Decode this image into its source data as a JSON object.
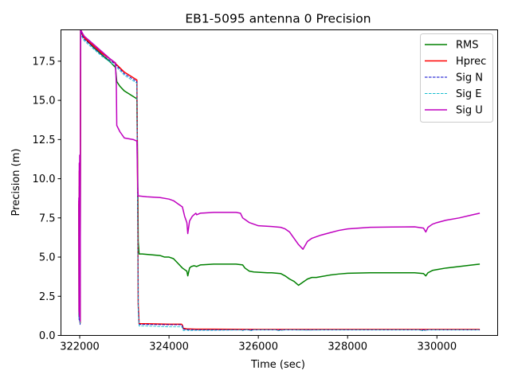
{
  "chart_data": {
    "type": "line",
    "title": "EB1-5095 antenna 0 Precision",
    "xlabel": "Time (sec)",
    "ylabel": "Precision (m)",
    "xlim": [
      321580,
      331360
    ],
    "ylim": [
      0.0,
      19.5
    ],
    "xticks": [
      322000,
      324000,
      326000,
      328000,
      330000
    ],
    "xtick_labels": [
      "322000",
      "324000",
      "326000",
      "328000",
      "330000"
    ],
    "yticks": [
      0.0,
      2.5,
      5.0,
      7.5,
      10.0,
      12.5,
      15.0,
      17.5
    ],
    "ytick_labels": [
      "0.0",
      "2.5",
      "5.0",
      "7.5",
      "10.0",
      "12.5",
      "15.0",
      "17.5"
    ],
    "grid": false,
    "legend_position": "top-right",
    "series": [
      {
        "name": "RMS",
        "color": "#008000",
        "style": "solid",
        "x": [
          321980,
          321985,
          321990,
          321995,
          322000,
          322005,
          322010,
          322020,
          322030,
          322040,
          322060,
          322100,
          322300,
          322500,
          322700,
          322800,
          322830,
          322900,
          323000,
          323280,
          323300,
          323310,
          323330,
          323400,
          323600,
          323800,
          323900,
          324000,
          324100,
          324200,
          324300,
          324400,
          324420,
          324460,
          324500,
          324560,
          324620,
          324700,
          325000,
          325500,
          325650,
          325700,
          325800,
          325900,
          326200,
          326300,
          326500,
          326600,
          326700,
          326800,
          326900,
          327000,
          327100,
          327200,
          327300,
          327400,
          327600,
          327800,
          328000,
          328500,
          329000,
          329500,
          329700,
          329750,
          329800,
          329900,
          330000,
          330200,
          330500,
          330800,
          330960
        ],
        "y": [
          8.4,
          1.2,
          9.5,
          1.0,
          10.8,
          1.0,
          0.8,
          19.5,
          19.4,
          19.3,
          19.2,
          19.0,
          18.4,
          17.9,
          17.4,
          17.1,
          16.2,
          15.9,
          15.6,
          15.1,
          10.0,
          6.0,
          5.2,
          5.2,
          5.15,
          5.1,
          5.0,
          5.0,
          4.9,
          4.6,
          4.3,
          4.1,
          3.8,
          4.3,
          4.4,
          4.45,
          4.4,
          4.5,
          4.55,
          4.55,
          4.5,
          4.3,
          4.1,
          4.05,
          4.0,
          4.0,
          3.95,
          3.8,
          3.6,
          3.45,
          3.2,
          3.4,
          3.6,
          3.7,
          3.7,
          3.75,
          3.85,
          3.92,
          3.97,
          4.0,
          4.0,
          4.0,
          3.95,
          3.8,
          4.0,
          4.15,
          4.2,
          4.3,
          4.4,
          4.5,
          4.55
        ]
      },
      {
        "name": "Hprec",
        "color": "#ff0000",
        "style": "solid",
        "x": [
          321980,
          321985,
          321990,
          321995,
          322000,
          322005,
          322010,
          322020,
          322030,
          322040,
          322060,
          322100,
          322300,
          322500,
          322700,
          322800,
          323000,
          323280,
          323300,
          323310,
          323330,
          323500,
          324000,
          324280,
          324300,
          324320,
          324400,
          324600,
          325000,
          326000,
          328000,
          330000,
          330960
        ],
        "y": [
          8.6,
          1.3,
          10.5,
          1.1,
          11.0,
          1.0,
          0.8,
          19.5,
          19.45,
          19.3,
          19.2,
          19.0,
          18.5,
          18.0,
          17.6,
          17.35,
          16.8,
          16.3,
          8.0,
          2.0,
          0.75,
          0.75,
          0.72,
          0.72,
          0.65,
          0.45,
          0.42,
          0.4,
          0.4,
          0.38,
          0.38,
          0.38,
          0.38
        ]
      },
      {
        "name": "Sig N",
        "color": "#0000cc",
        "style": "dashed",
        "x": [
          321980,
          321985,
          321990,
          321995,
          322000,
          322005,
          322010,
          322020,
          322030,
          322040,
          322060,
          322100,
          322300,
          322500,
          322700,
          322800,
          323000,
          323280,
          323300,
          323310,
          323330,
          323500,
          324000,
          324280,
          324300,
          324320,
          324400,
          324600,
          325000,
          326000,
          328000,
          330000,
          330960
        ],
        "y": [
          8.0,
          1.0,
          10.0,
          0.9,
          10.5,
          0.9,
          0.7,
          19.4,
          19.35,
          19.2,
          19.1,
          18.9,
          18.4,
          17.9,
          17.5,
          17.3,
          16.7,
          16.2,
          7.5,
          1.8,
          0.7,
          0.7,
          0.68,
          0.68,
          0.6,
          0.4,
          0.38,
          0.36,
          0.36,
          0.35,
          0.35,
          0.35,
          0.35
        ]
      },
      {
        "name": "Sig E",
        "color": "#17becf",
        "style": "dashed",
        "x": [
          321980,
          321985,
          321990,
          321995,
          322000,
          322005,
          322010,
          322020,
          322030,
          322040,
          322060,
          322100,
          322300,
          322500,
          322700,
          322800,
          323000,
          323280,
          323300,
          323310,
          323330,
          323500,
          324000,
          324280,
          324300,
          324320,
          324400,
          324450,
          324500,
          324600,
          325000,
          325600,
          325650,
          325700,
          325850,
          325900,
          326400,
          326450,
          326600,
          327100,
          327400,
          328000,
          329600,
          329700,
          329800,
          330000,
          330960
        ],
        "y": [
          7.5,
          1.1,
          9.0,
          0.9,
          10.0,
          0.9,
          0.8,
          19.3,
          19.25,
          19.1,
          19.0,
          18.8,
          18.3,
          17.8,
          17.4,
          17.2,
          16.6,
          16.1,
          7.0,
          1.5,
          0.6,
          0.6,
          0.55,
          0.55,
          0.5,
          0.3,
          0.35,
          0.3,
          0.32,
          0.33,
          0.33,
          0.35,
          0.3,
          0.38,
          0.3,
          0.35,
          0.35,
          0.3,
          0.36,
          0.34,
          0.35,
          0.35,
          0.35,
          0.3,
          0.36,
          0.35,
          0.35
        ]
      },
      {
        "name": "Sig U",
        "color": "#bf00bf",
        "style": "solid",
        "x": [
          321980,
          321985,
          321990,
          321995,
          322000,
          322005,
          322010,
          322020,
          322030,
          322040,
          322060,
          322100,
          322300,
          322500,
          322700,
          322800,
          322820,
          322830,
          322900,
          323000,
          323200,
          323280,
          323300,
          323310,
          323330,
          323500,
          323800,
          324000,
          324100,
          324200,
          324300,
          324350,
          324400,
          324420,
          324460,
          324520,
          324560,
          324600,
          324620,
          324700,
          325000,
          325500,
          325600,
          325650,
          325700,
          325800,
          326000,
          326300,
          326500,
          326600,
          326700,
          326800,
          326900,
          327000,
          327100,
          327200,
          327300,
          327400,
          327600,
          327800,
          328000,
          328500,
          329000,
          329500,
          329700,
          329750,
          329800,
          329900,
          330000,
          330200,
          330500,
          330800,
          330960
        ],
        "y": [
          8.8,
          1.5,
          11.0,
          1.2,
          11.5,
          1.1,
          0.9,
          19.6,
          19.5,
          19.4,
          19.3,
          19.1,
          18.6,
          18.1,
          17.6,
          17.4,
          16.0,
          13.4,
          13.0,
          12.6,
          12.5,
          12.4,
          9.5,
          8.9,
          8.9,
          8.85,
          8.8,
          8.7,
          8.6,
          8.4,
          8.2,
          7.6,
          7.2,
          6.5,
          7.3,
          7.6,
          7.7,
          7.8,
          7.7,
          7.8,
          7.85,
          7.85,
          7.8,
          7.5,
          7.4,
          7.2,
          7.0,
          6.95,
          6.9,
          6.8,
          6.6,
          6.2,
          5.8,
          5.5,
          6.0,
          6.2,
          6.3,
          6.4,
          6.55,
          6.7,
          6.8,
          6.9,
          6.92,
          6.93,
          6.85,
          6.6,
          6.9,
          7.1,
          7.2,
          7.35,
          7.5,
          7.7,
          7.8
        ]
      }
    ]
  }
}
